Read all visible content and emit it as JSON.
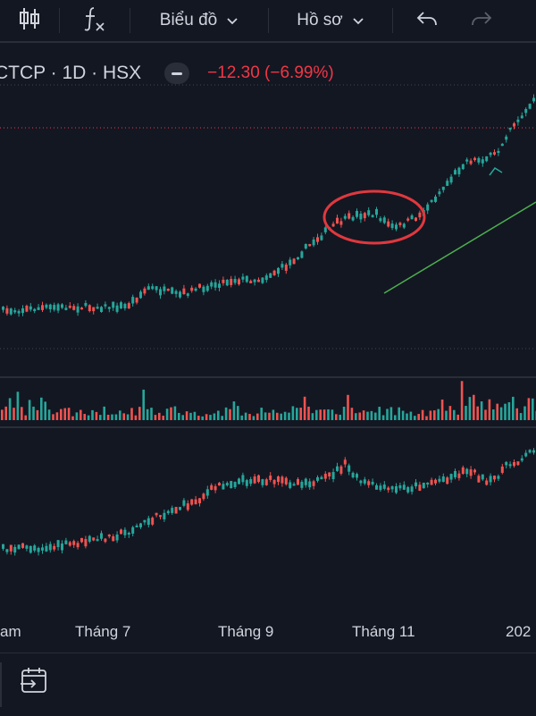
{
  "toolbar": {
    "indicators_icon": "fx-icon",
    "chart_menu_label": "Biểu đồ",
    "profile_menu_label": "Hồ sơ"
  },
  "legend": {
    "symbol": "CTCP · 1D · HSX",
    "change": "−12.30 (−6.99%)"
  },
  "xaxis": {
    "labels": [
      "am",
      "Tháng 7",
      "Tháng 9",
      "Tháng 11",
      "202"
    ]
  },
  "colors": {
    "background": "#131722",
    "up": "#26a69a",
    "down": "#ef5350",
    "trendline": "#4caf50",
    "highlight_circle": "#e0383e",
    "price_line": "#f23645"
  }
}
